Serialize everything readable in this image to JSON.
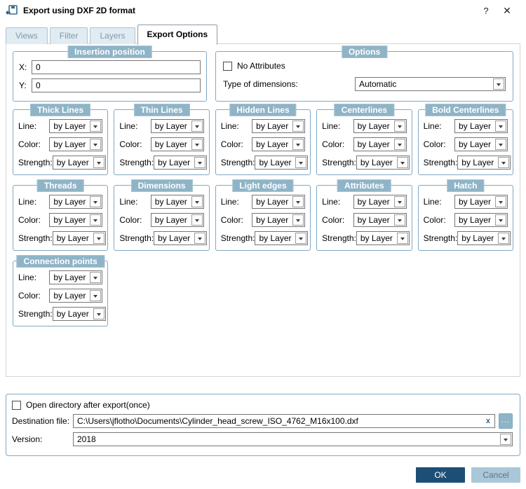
{
  "window": {
    "title": "Export using DXF 2D format",
    "help_label": "?",
    "close_label": "✕"
  },
  "tabs": {
    "views": "Views",
    "filter": "Filter",
    "layers": "Layers",
    "export_options": "Export Options"
  },
  "insertion_position": {
    "title": "Insertion position",
    "x_label": "X:",
    "x_value": "0",
    "y_label": "Y:",
    "y_value": "0"
  },
  "options": {
    "title": "Options",
    "no_attributes_label": "No Attributes",
    "no_attributes_checked": false,
    "type_of_dimensions_label": "Type of dimensions:",
    "type_of_dimensions_value": "Automatic"
  },
  "line_groups": {
    "field_labels": {
      "line": "Line:",
      "color": "Color:",
      "strength": "Strength:"
    },
    "dropdown_value": "by Layer",
    "rows": [
      [
        "Thick Lines",
        "Thin Lines",
        "Hidden Lines",
        "Centerlines",
        "Bold Centerlines"
      ],
      [
        "Threads",
        "Dimensions",
        "Light edges",
        "Attributes",
        "Hatch"
      ],
      [
        "Connection points"
      ]
    ]
  },
  "export_section": {
    "open_directory_label": "Open directory after export(once)",
    "open_directory_checked": false,
    "destination_label": "Destination file:",
    "destination_value": "C:\\Users\\jflotho\\Documents\\Cylinder_head_screw_ISO_4762_M16x100.dxf",
    "clear_label": "x",
    "browse_label": "...",
    "version_label": "Version:",
    "version_value": "2018"
  },
  "buttons": {
    "ok": "OK",
    "cancel": "Cancel"
  },
  "colors": {
    "accent_badge": "#8fb4c7",
    "group_border": "#7fa9c4",
    "ok_bg": "#1d4e76",
    "cancel_bg": "#a9c7d9",
    "inactive_tab_bg": "#e1ebf2",
    "inactive_tab_text": "#7e9aab"
  }
}
